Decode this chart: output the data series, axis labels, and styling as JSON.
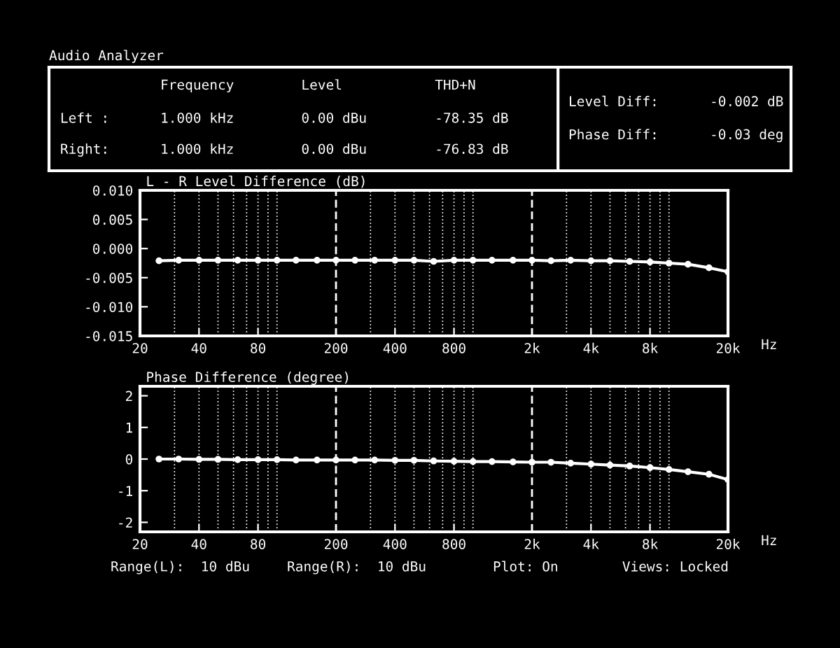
{
  "chart_data": [
    {
      "type": "other",
      "title": "Audio Analyzer",
      "annotations": [
        "Frequency",
        "Level",
        "THD+N",
        "Left :",
        "1.000 kHz",
        "0.00 dBu",
        "-78.35 dB",
        "Right:",
        "1.000 kHz",
        "0.00 dBu",
        "-76.83 dB",
        "Level Diff:",
        "-0.002 dB",
        "Phase Diff:",
        "-0.03 deg"
      ]
    },
    {
      "type": "line",
      "title": "L - R Level Difference (dB)",
      "xlabel": "Hz",
      "log": "x",
      "marker": "circle",
      "line_style": "solid",
      "grid": "x",
      "x": [
        25,
        31.5,
        40,
        50,
        63,
        80,
        100,
        125,
        160,
        200,
        250,
        315,
        400,
        500,
        630,
        800,
        1000,
        1250,
        1600,
        2000,
        2500,
        3150,
        4000,
        5000,
        6300,
        8000,
        10000,
        12500,
        16000,
        20000
      ],
      "series": [
        {
          "color": "#ffffff",
          "values": [
            -0.0021,
            -0.002,
            -0.002,
            -0.002,
            -0.002,
            -0.002,
            -0.002,
            -0.002,
            -0.002,
            -0.002,
            -0.002,
            -0.002,
            -0.002,
            -0.002,
            -0.0022,
            -0.002,
            -0.002,
            -0.002,
            -0.002,
            -0.002,
            -0.0021,
            -0.002,
            -0.0021,
            -0.0021,
            -0.0022,
            -0.0023,
            -0.0025,
            -0.0027,
            -0.0033,
            -0.004
          ]
        }
      ],
      "xlim": [
        20,
        20000
      ],
      "xticks": [
        20,
        40,
        80,
        200,
        400,
        800,
        {
          "value": 2000,
          "label": "2k"
        },
        {
          "value": 4000,
          "label": "4k"
        },
        {
          "value": 8000,
          "label": "8k"
        },
        {
          "value": 20000,
          "label": "20k"
        }
      ],
      "ylim": [
        -0.015,
        0.01
      ],
      "yticks": [
        {
          "value": 0.01,
          "label": "0.010"
        },
        {
          "value": 0.005,
          "label": "0.005"
        },
        {
          "value": 0,
          "label": "0.000"
        },
        {
          "value": -0.005,
          "label": "-0.005"
        },
        {
          "value": -0.01,
          "label": "-0.010"
        },
        {
          "value": -0.015,
          "label": "-0.015"
        }
      ]
    },
    {
      "type": "line",
      "title": "Phase Difference (degree)",
      "xlabel": "Hz",
      "log": "x",
      "marker": "circle",
      "line_style": "solid",
      "grid": "x",
      "x": [
        25,
        31.5,
        40,
        50,
        63,
        80,
        100,
        125,
        160,
        200,
        250,
        315,
        400,
        500,
        630,
        800,
        1000,
        1250,
        1600,
        2000,
        2500,
        3150,
        4000,
        5000,
        6300,
        8000,
        10000,
        12500,
        16000,
        20000
      ],
      "series": [
        {
          "color": "#ffffff",
          "values": [
            0,
            0,
            -0.01,
            -0.01,
            -0.02,
            -0.02,
            -0.02,
            -0.03,
            -0.03,
            -0.03,
            -0.03,
            -0.03,
            -0.04,
            -0.04,
            -0.06,
            -0.07,
            -0.08,
            -0.08,
            -0.09,
            -0.1,
            -0.1,
            -0.13,
            -0.16,
            -0.19,
            -0.22,
            -0.27,
            -0.33,
            -0.4,
            -0.48,
            -0.65
          ]
        }
      ],
      "xlim": [
        20,
        20000
      ],
      "xticks": [
        20,
        40,
        80,
        200,
        400,
        800,
        {
          "value": 2000,
          "label": "2k"
        },
        {
          "value": 4000,
          "label": "4k"
        },
        {
          "value": 8000,
          "label": "8k"
        },
        {
          "value": 20000,
          "label": "20k"
        }
      ],
      "ylim": [
        -2.3,
        2.3
      ],
      "yticks": [
        -2,
        -1,
        0,
        1,
        2
      ],
      "annotations": [
        "Range(L):  10 dBu",
        "Range(R):  10 dBu",
        "Plot: On",
        "Views: Locked"
      ]
    }
  ]
}
